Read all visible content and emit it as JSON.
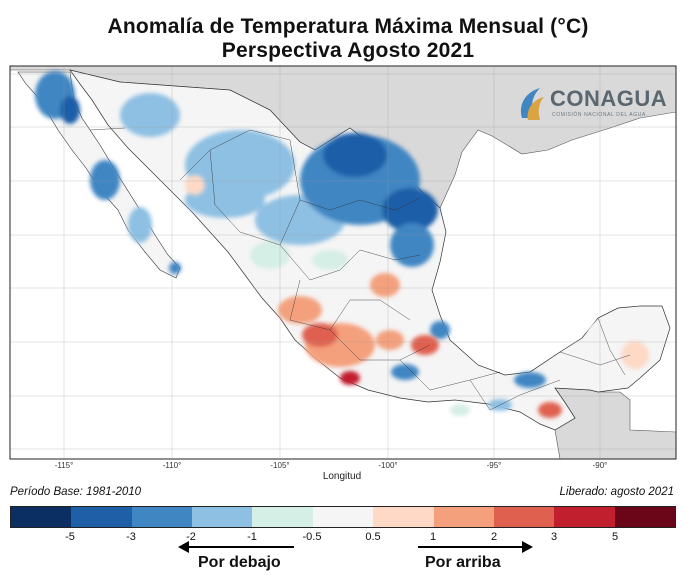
{
  "title_line1": "Anomalía de Temperatura Máxima Mensual (°C)",
  "title_line2": "Perspectiva Agosto 2021",
  "logo": {
    "name": "CONAGUA",
    "subtitle": "COMISIÓN NACIONAL DEL AGUA"
  },
  "axis": {
    "xlabel": "Longitud",
    "xticks": [
      "-115°",
      "-110°",
      "-105°",
      "-100°",
      "-95°",
      "-90°"
    ]
  },
  "footer": {
    "base_period": "Período Base: 1981-2010",
    "released": "Liberado: agosto 2021"
  },
  "colorbar": {
    "colors": [
      "#0b2f63",
      "#1f5fa8",
      "#3f86c3",
      "#8ec0e3",
      "#d5eee6",
      "#f5f5f5",
      "#fdd9c6",
      "#f4a07d",
      "#e0604f",
      "#c21f2e",
      "#6b0618"
    ],
    "ticks": [
      "-5",
      "-3",
      "-2",
      "-1",
      "-0.5",
      "0.5",
      "1",
      "2",
      "3",
      "5"
    ],
    "below_label": "Por debajo",
    "above_label": "Por arriba"
  },
  "map": {
    "land_color": "#f5f5f5",
    "outside_color": "#d9d9d9",
    "sea_color": "#ffffff"
  }
}
